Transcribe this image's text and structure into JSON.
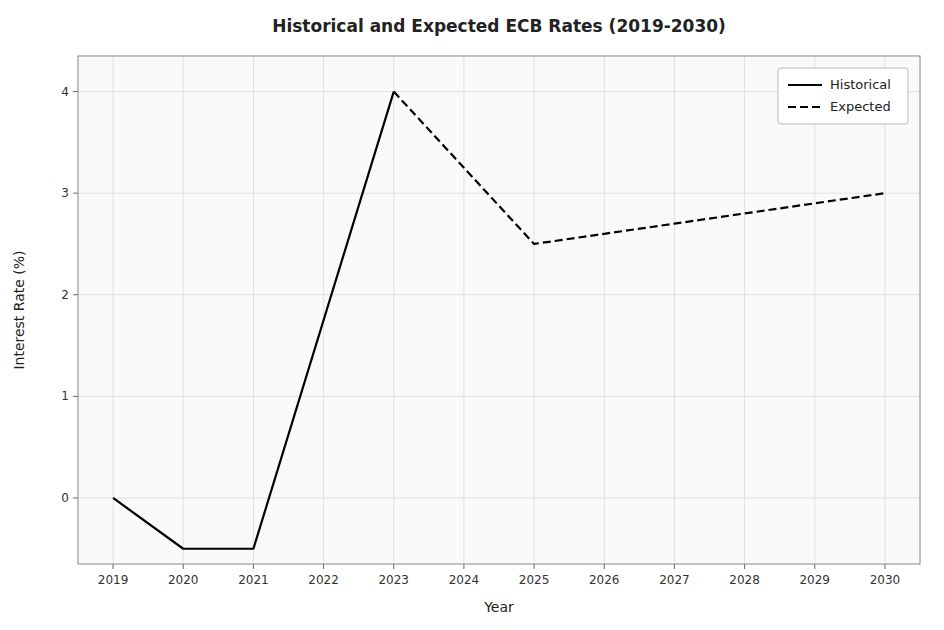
{
  "chart_data": {
    "type": "line",
    "title": "Historical and Expected ECB Rates (2019-2030)",
    "x_label": "Year",
    "y_label": "Interest Rate (%)",
    "series": [
      {
        "name": "Historical",
        "color": "#000000",
        "line_style": "solid",
        "x": [
          2019,
          2020,
          2021,
          2023
        ],
        "values": [
          0.0,
          -0.5,
          -0.5,
          4.0
        ]
      },
      {
        "name": "Expected",
        "color": "#000000",
        "line_style": "dashed",
        "x": [
          2023,
          2025,
          2026,
          2027,
          2028,
          2029,
          2030
        ],
        "values": [
          4.0,
          2.5,
          2.6,
          2.7,
          2.8,
          2.9,
          3.0
        ]
      }
    ],
    "xlim": [
      2018.5,
      2030.5
    ],
    "ylim": [
      -0.65,
      4.35
    ],
    "xticks": [
      2019,
      2020,
      2021,
      2022,
      2023,
      2024,
      2025,
      2026,
      2027,
      2028,
      2029,
      2030
    ],
    "yticks": [
      0,
      1,
      2,
      3,
      4
    ],
    "grid": true,
    "legend": "upper right"
  }
}
